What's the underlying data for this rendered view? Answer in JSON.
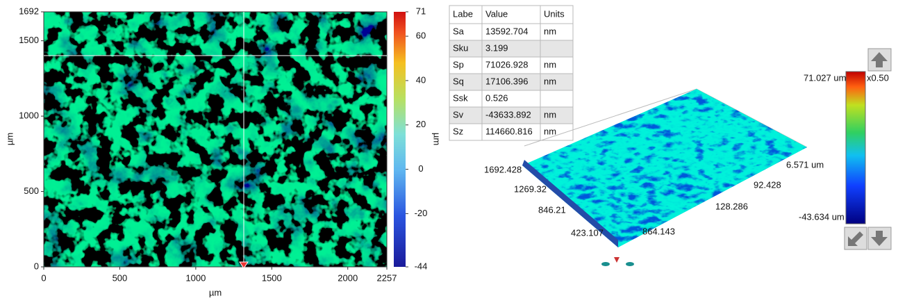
{
  "height_map": {
    "x_label": "µm",
    "y_label": "µm",
    "xlim": [
      0,
      2257
    ],
    "xticks": [
      0,
      500,
      1000,
      1500,
      2000,
      2257
    ],
    "ylim": [
      0,
      1692
    ],
    "yticks": [
      0,
      500,
      1000,
      1500,
      1692
    ],
    "colorbar": {
      "label": "µm",
      "lim": [
        -44,
        71
      ],
      "ticks": [
        -44,
        -20,
        0,
        20,
        40,
        60,
        71
      ]
    }
  },
  "table": {
    "header": [
      "Labe",
      "Value",
      "Units"
    ],
    "rows": [
      [
        "Sa",
        "13592.704",
        "nm"
      ],
      [
        "Sku",
        "3.199",
        ""
      ],
      [
        "Sp",
        "71026.928",
        "nm"
      ],
      [
        "Sq",
        "17106.396",
        "nm"
      ],
      [
        "Ssk",
        "0.526",
        ""
      ],
      [
        "Sv",
        "-43633.892",
        "nm"
      ],
      [
        "Sz",
        "114660.816",
        "nm"
      ]
    ]
  },
  "view_3d": {
    "axis_labels": [
      "1692.428",
      "1269.32",
      "846.21",
      "423.107",
      "864.143",
      "128.286",
      "92.428",
      "6.571 um"
    ],
    "colorbar": {
      "max": "71.027 um",
      "min": "-43.634 um",
      "scale": "x0.50"
    }
  }
}
